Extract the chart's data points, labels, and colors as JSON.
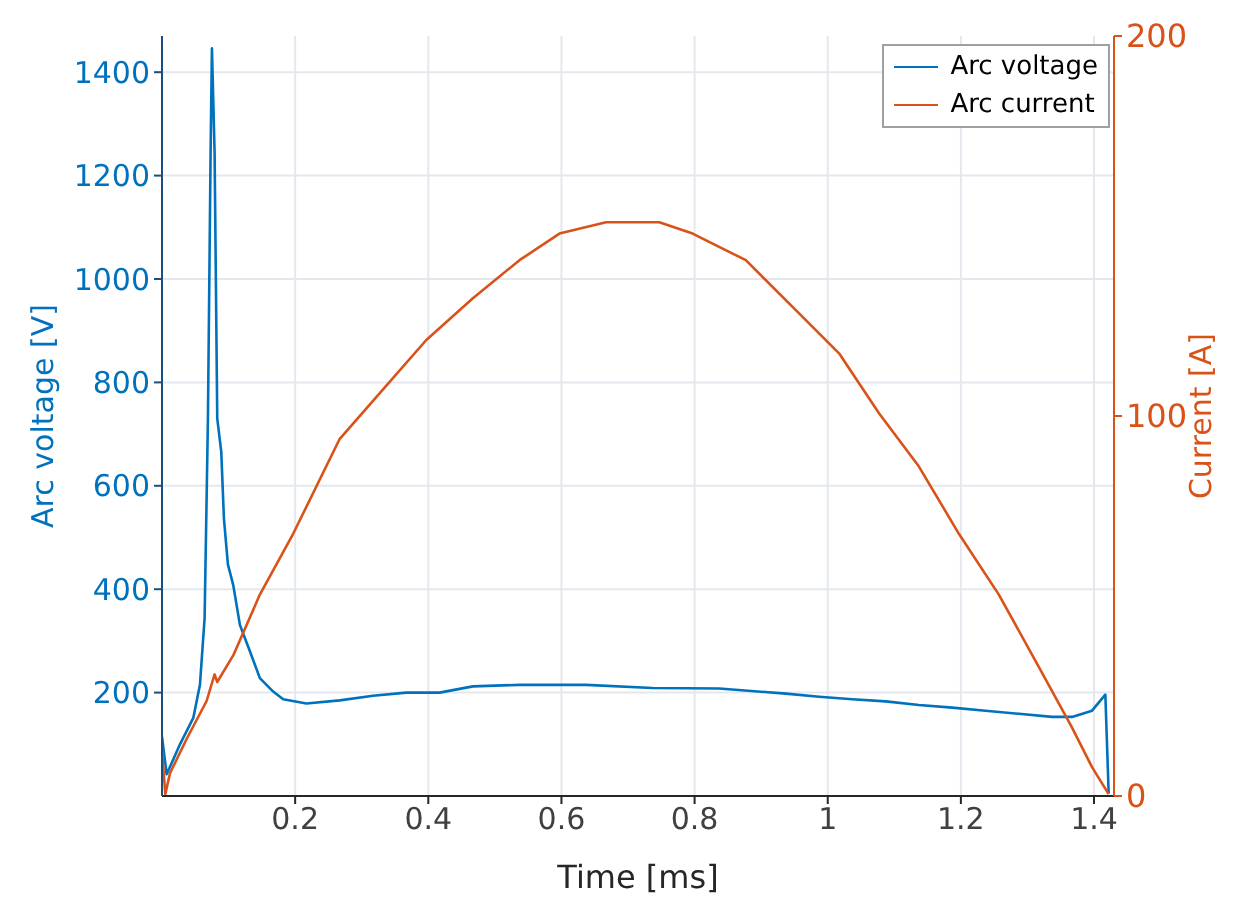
{
  "chart_data": {
    "type": "line",
    "xlabel": "Time [ms]",
    "ylabel": "Arc voltage [V]",
    "y2label": "Current [A]",
    "xlim": [
      0,
      1.43
    ],
    "xticks": [
      0.2,
      0.4,
      0.6,
      0.8,
      1,
      1.2,
      1.4
    ],
    "ylim": [
      0,
      1470
    ],
    "yticks": [
      200,
      400,
      600,
      800,
      1000,
      1200,
      1400
    ],
    "y2lim": [
      0,
      200
    ],
    "y2ticks": [
      0,
      100,
      200
    ],
    "grid": true,
    "legend": "top right",
    "series": [
      {
        "name": "Arc voltage",
        "color": "#0072bd",
        "x": [
          0,
          0.007,
          0.027,
          0.047,
          0.057,
          0.064,
          0.069,
          0.073,
          0.075,
          0.079,
          0.083,
          0.089,
          0.093,
          0.099,
          0.107,
          0.117,
          0.132,
          0.147,
          0.167,
          0.182,
          0.217,
          0.267,
          0.317,
          0.367,
          0.417,
          0.467,
          0.537,
          0.637,
          0.737,
          0.837,
          0.937,
          0.987,
          1.037,
          1.087,
          1.137,
          1.187,
          1.237,
          1.287,
          1.337,
          1.367,
          1.397,
          1.417,
          1.422
        ],
        "values": [
          115,
          42,
          100,
          151,
          215,
          344,
          730,
          1245,
          1446,
          1245,
          730,
          666,
          537,
          448,
          408,
          331,
          280,
          228,
          202,
          187,
          179,
          185,
          194,
          200,
          200,
          212,
          215,
          215,
          209,
          208,
          198,
          192,
          187,
          183,
          176,
          171,
          165,
          159,
          153,
          153,
          165,
          196,
          5
        ]
      },
      {
        "name": "Arc current",
        "color": "#d95319",
        "axis": "y2",
        "x": [
          0,
          0.005,
          0.012,
          0.037,
          0.067,
          0.079,
          0.083,
          0.107,
          0.147,
          0.197,
          0.267,
          0.337,
          0.397,
          0.467,
          0.537,
          0.597,
          0.667,
          0.747,
          0.797,
          0.877,
          0.957,
          1.017,
          1.077,
          1.137,
          1.197,
          1.257,
          1.317,
          1.367,
          1.397,
          1.422
        ],
        "values": [
          12,
          0.5,
          6,
          15,
          25,
          32,
          30,
          37,
          53,
          69,
          94,
          108,
          120,
          131,
          141,
          148,
          151,
          151,
          148,
          141,
          127,
          116.5,
          100.7,
          86.7,
          69,
          53,
          34,
          18,
          7.6,
          0.5
        ]
      }
    ]
  }
}
